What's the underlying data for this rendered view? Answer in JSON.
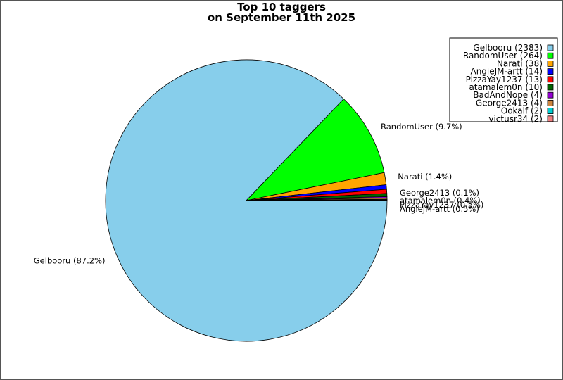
{
  "chart_data": {
    "type": "pie",
    "title_lines": [
      "Top 10 taggers",
      "on September 11th 2025"
    ],
    "start_angle_deg": 0,
    "direction": "clockwise",
    "legend_position": "top-right",
    "slices": [
      {
        "label": "Gelbooru",
        "value": 2383,
        "percent_label": "Gelbooru (87.2%)",
        "legend_label": "Gelbooru (2383)",
        "color": "#87CEEB"
      },
      {
        "label": "RandomUser",
        "value": 264,
        "percent_label": "RandomUser (9.7%)",
        "legend_label": "RandomUser (264)",
        "color": "#00FF00"
      },
      {
        "label": "Narati",
        "value": 38,
        "percent_label": "Narati (1.4%)",
        "legend_label": "Narati (38)",
        "color": "#FFA500"
      },
      {
        "label": "AngieJM-artt",
        "value": 14,
        "percent_label": "AngieJM-artt (0.5%)",
        "legend_label": "AngieJM-artt (14)",
        "color": "#0000FF"
      },
      {
        "label": "PizzaYay1237",
        "value": 13,
        "percent_label": "PizzaYay1237 (0.5%)",
        "legend_label": "PizzaYay1237 (13)",
        "color": "#FF0000"
      },
      {
        "label": "atamalem0n",
        "value": 10,
        "percent_label": "atamalem0n (0.4%)",
        "legend_label": "atamalem0n (10)",
        "color": "#006400"
      },
      {
        "label": "BadAndNope",
        "value": 4,
        "percent_label": "",
        "legend_label": "BadAndNope (4)",
        "color": "#9400D3"
      },
      {
        "label": "George2413",
        "value": 4,
        "percent_label": "George2413 (0.1%)",
        "legend_label": "George2413 (4)",
        "color": "#CD853F"
      },
      {
        "label": "Ookalf",
        "value": 2,
        "percent_label": "",
        "legend_label": "Ookalf (2)",
        "color": "#00CED1"
      },
      {
        "label": "victusr34",
        "value": 2,
        "percent_label": "",
        "legend_label": "victusr34 (2)",
        "color": "#F08080"
      }
    ]
  }
}
